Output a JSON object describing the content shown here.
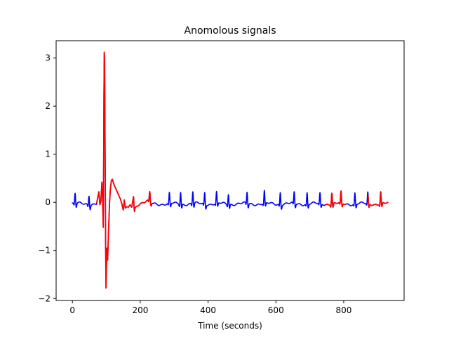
{
  "chart_data": {
    "type": "line",
    "title": "Anomolous signals",
    "xlabel": "Time (seconds)",
    "ylabel": "",
    "xlim": [
      -48,
      978
    ],
    "ylim": [
      -2.04,
      3.36
    ],
    "xticks": [
      0,
      200,
      400,
      600,
      800
    ],
    "yticks": [
      -2,
      -1,
      0,
      1,
      2,
      3
    ],
    "grid": false,
    "legend": "none",
    "beat_times": [
      8,
      49,
      79,
      104,
      134,
      157,
      179,
      228,
      286,
      319,
      355,
      390,
      425,
      460,
      515,
      566,
      613,
      654,
      692,
      730,
      765,
      792,
      833,
      871,
      909
    ],
    "beat_heights": [
      0.22,
      0.2,
      0.22,
      0.18,
      0.15,
      0.18,
      0.14,
      0.22,
      0.22,
      0.26,
      0.26,
      0.25,
      0.24,
      0.22,
      0.24,
      0.26,
      0.26,
      0.24,
      0.24,
      0.22,
      0.24,
      0.24,
      0.23,
      0.24,
      0.25
    ],
    "series": [
      {
        "color": "#0000ff",
        "segments": [
          [
            0,
            930
          ]
        ]
      },
      {
        "color": "#ff0000",
        "segments": [
          [
            72,
            232
          ],
          [
            748,
            805
          ],
          [
            872,
            930
          ]
        ]
      }
    ],
    "anomaly_points": [
      [
        72,
        0.0
      ],
      [
        78,
        0.22
      ],
      [
        81,
        -0.05
      ],
      [
        84,
        0.02
      ],
      [
        87,
        0.42
      ],
      [
        89,
        0.1
      ],
      [
        91,
        -0.52
      ],
      [
        92,
        0.6
      ],
      [
        93,
        2.2
      ],
      [
        94,
        3.12
      ],
      [
        95,
        2.9
      ],
      [
        96,
        1.6
      ],
      [
        97,
        0.4
      ],
      [
        98,
        -0.9
      ],
      [
        99,
        -1.78
      ],
      [
        100,
        -1.45
      ],
      [
        102,
        -0.95
      ],
      [
        104,
        -1.2
      ],
      [
        106,
        -0.7
      ],
      [
        108,
        -0.3
      ],
      [
        110,
        0.05
      ],
      [
        112,
        0.28
      ],
      [
        115,
        0.46
      ],
      [
        118,
        0.48
      ],
      [
        122,
        0.38
      ],
      [
        127,
        0.3
      ],
      [
        132,
        0.22
      ],
      [
        137,
        0.14
      ],
      [
        142,
        0.06
      ],
      [
        146,
        -0.04
      ],
      [
        150,
        -0.16
      ],
      [
        153,
        0.05
      ],
      [
        156,
        -0.12
      ],
      [
        160,
        -0.09
      ],
      [
        165,
        -0.1
      ],
      [
        170,
        -0.05
      ],
      [
        175,
        -0.1
      ],
      [
        180,
        0.12
      ],
      [
        183,
        -0.12
      ],
      [
        190,
        -0.05
      ],
      [
        200,
        -0.02
      ],
      [
        212,
        0.0
      ],
      [
        222,
        0.02
      ],
      [
        232,
        0.0
      ]
    ]
  }
}
